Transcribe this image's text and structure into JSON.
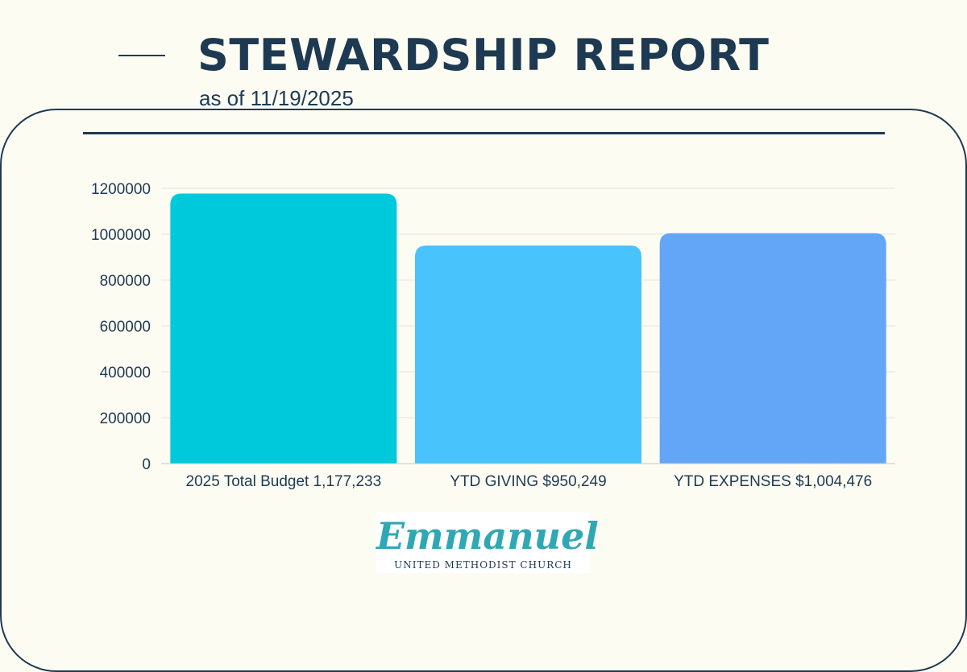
{
  "header": {
    "title": "STEWARDSHIP REPORT",
    "subtitle": "as of 11/19/2025"
  },
  "logo": {
    "wordmark": "Emmanuel",
    "subtext": "UNITED METHODIST CHURCH"
  },
  "colors": {
    "navy": "#1e3a52",
    "background": "#fdfcf3",
    "grid": "#e3e3dc",
    "bars": [
      "#00c9dc",
      "#48c3fb",
      "#63a6f8"
    ]
  },
  "chart_data": {
    "type": "bar",
    "title": "",
    "xlabel": "",
    "ylabel": "",
    "categories": [
      "2025 Total Budget 1,177,233",
      "YTD GIVING $950,249",
      "YTD EXPENSES $1,004,476"
    ],
    "values": [
      1177233,
      950249,
      1004476
    ],
    "ylim": [
      0,
      1200000
    ],
    "yticks": [
      0,
      200000,
      400000,
      600000,
      800000,
      1000000,
      1200000
    ],
    "ytick_labels": [
      "0",
      "200000",
      "400000",
      "600000",
      "800000",
      "1000000",
      "1200000"
    ],
    "grid": true,
    "legend": "none"
  }
}
